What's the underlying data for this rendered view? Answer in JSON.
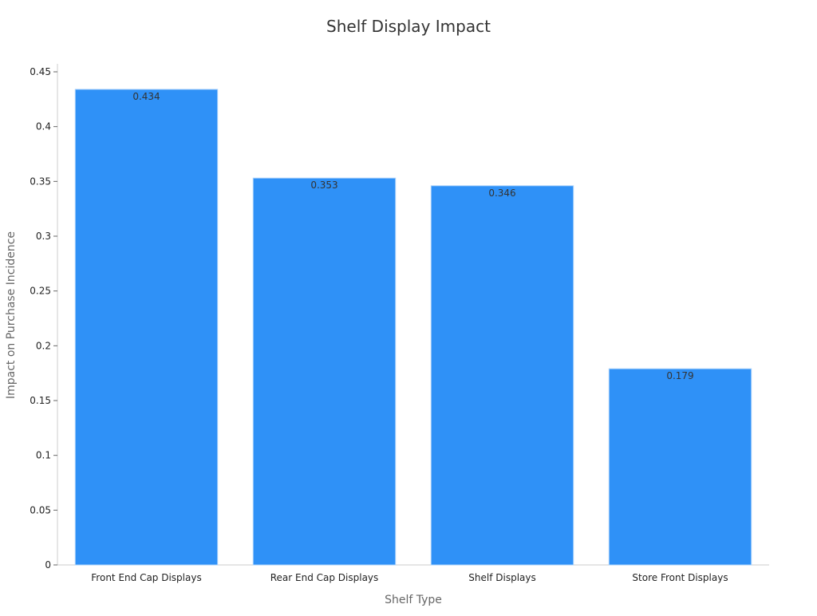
{
  "chart_data": {
    "type": "bar",
    "title": "Shelf Display Impact",
    "xlabel": "Shelf Type",
    "ylabel": "Impact on Purchase Incidence",
    "categories": [
      "Front End Cap Displays",
      "Rear End Cap Displays",
      "Shelf Displays",
      "Store Front Displays"
    ],
    "values": [
      0.434,
      0.353,
      0.346,
      0.179
    ],
    "data_labels": [
      "0.434",
      "0.353",
      "0.346",
      "0.179"
    ],
    "ylim": [
      0,
      0.45
    ],
    "yticks": [
      0,
      0.05,
      0.1,
      0.15,
      0.2,
      0.25,
      0.3,
      0.35,
      0.4,
      0.45
    ],
    "ytick_labels": [
      "0",
      "0.05",
      "0.1",
      "0.15",
      "0.2",
      "0.25",
      "0.3",
      "0.35",
      "0.4",
      "0.45"
    ],
    "grid": false,
    "legend": "none",
    "colors": {
      "bar": "#2f91f7",
      "bar_edge": "#a9d0fa",
      "axis": "#cccccc",
      "text": "#222222"
    }
  }
}
